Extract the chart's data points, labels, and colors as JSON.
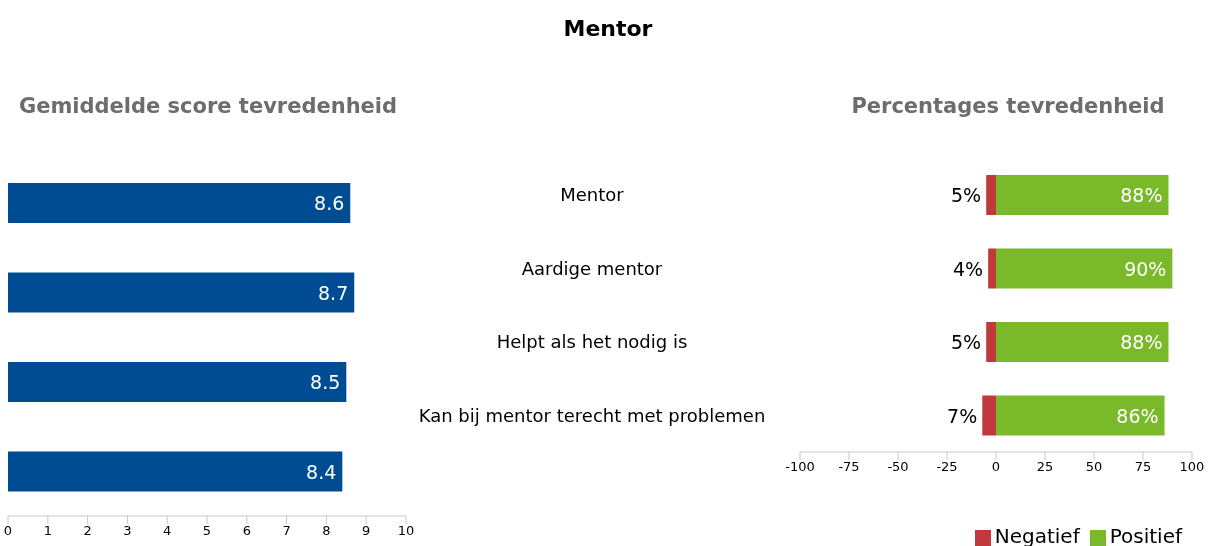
{
  "chart_data": [
    {
      "type": "bar",
      "title": "Gemiddelde score tevredenheid",
      "orientation": "horizontal",
      "categories": [
        null,
        null,
        null,
        null
      ],
      "values": [
        8.6,
        8.7,
        8.5,
        8.4
      ],
      "color": "#004c93",
      "data_labels": true,
      "xlim": [
        0,
        10
      ],
      "xticks": [
        0,
        1,
        2,
        3,
        4,
        5,
        6,
        7,
        8,
        9,
        10
      ],
      "tick_labels": "x",
      "grid": false
    },
    {
      "type": "bar",
      "title": "Mentor",
      "subtitle": "Percentages tevredenheid",
      "orientation": "horizontal",
      "categories": [
        "Mentor",
        "Aardige mentor",
        "Helpt als het nodig is",
        "Kan bij mentor terecht met problemen"
      ],
      "series": [
        {
          "name": "Negatief",
          "color": "#c0393b",
          "base": [
            -5,
            -4,
            -5,
            -7
          ],
          "values": [
            5,
            4,
            5,
            7
          ],
          "value_labels": [
            "5%",
            "4%",
            "5%",
            "7%"
          ]
        },
        {
          "name": "Positief",
          "color": "#7ab929",
          "values": [
            88,
            90,
            88,
            86
          ],
          "value_labels": [
            "88%",
            "90%",
            "88%",
            "86%"
          ]
        }
      ],
      "xlim": [
        -100,
        100
      ],
      "xticks": [
        -100,
        -75,
        -50,
        -25,
        0,
        25,
        50,
        75,
        100
      ],
      "legend": "bottom",
      "grid": false
    }
  ]
}
